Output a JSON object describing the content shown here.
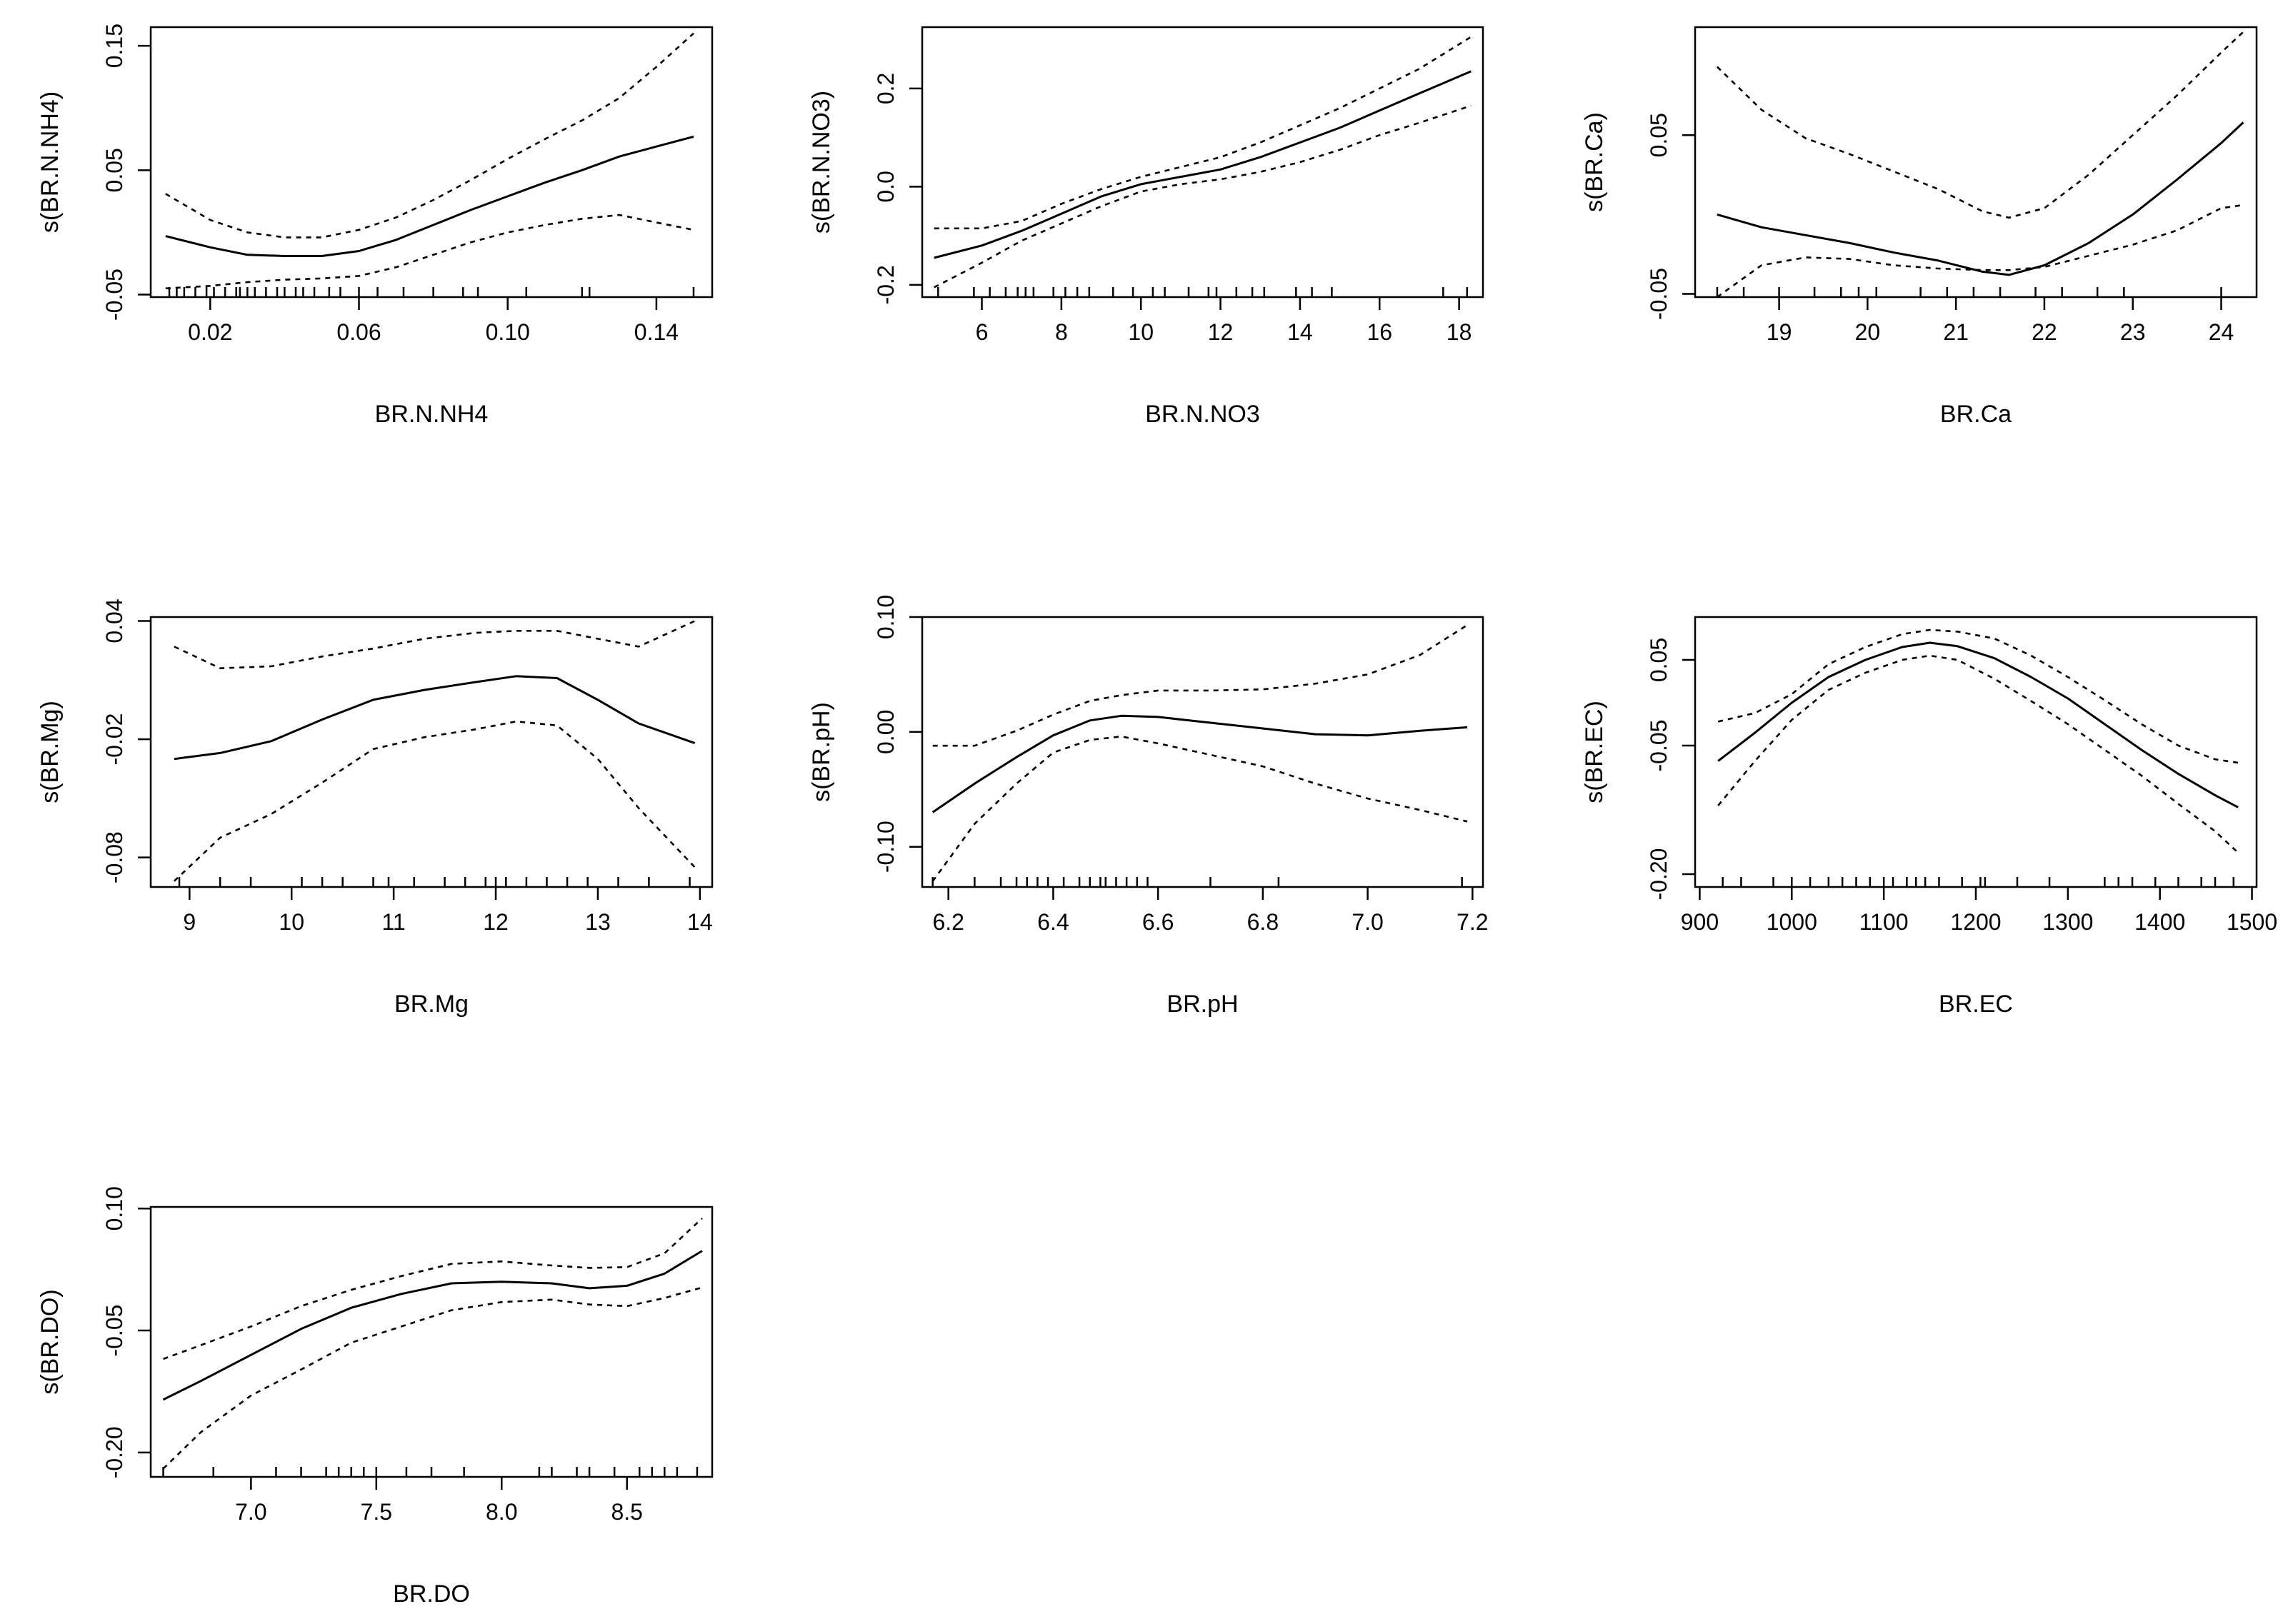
{
  "chart_data": [
    {
      "type": "line",
      "xlabel": "BR.N.NH4",
      "ylabel": "s(BR.N.NH4)",
      "xlim": [
        0.004,
        0.155
      ],
      "ylim": [
        -0.052,
        0.165
      ],
      "xticks": [
        0.02,
        0.06,
        0.1,
        0.14
      ],
      "xtick_labels": [
        "0.02",
        "0.06",
        "0.10",
        "0.14"
      ],
      "yticks": [
        -0.05,
        0.05,
        0.15
      ],
      "ytick_labels": [
        "-0.05",
        "0.05",
        "0.15"
      ],
      "series": [
        {
          "style": "solid",
          "x": [
            0.008,
            0.02,
            0.03,
            0.04,
            0.05,
            0.06,
            0.07,
            0.08,
            0.09,
            0.1,
            0.11,
            0.12,
            0.13,
            0.14,
            0.15
          ],
          "y": [
            -0.003,
            -0.012,
            -0.018,
            -0.019,
            -0.019,
            -0.015,
            -0.006,
            0.006,
            0.018,
            0.029,
            0.04,
            0.05,
            0.061,
            0.069,
            0.077
          ]
        },
        {
          "style": "dotted",
          "x": [
            0.008,
            0.02,
            0.03,
            0.04,
            0.05,
            0.06,
            0.07,
            0.08,
            0.09,
            0.1,
            0.11,
            0.12,
            0.13,
            0.14,
            0.15
          ],
          "y": [
            0.031,
            0.01,
            0.0,
            -0.004,
            -0.004,
            0.002,
            0.012,
            0.026,
            0.042,
            0.059,
            0.075,
            0.09,
            0.108,
            0.133,
            0.16
          ]
        },
        {
          "style": "dotted",
          "x": [
            0.008,
            0.02,
            0.03,
            0.04,
            0.05,
            0.06,
            0.07,
            0.08,
            0.09,
            0.1,
            0.11,
            0.12,
            0.13,
            0.14,
            0.15
          ],
          "y": [
            -0.045,
            -0.043,
            -0.04,
            -0.038,
            -0.037,
            -0.035,
            -0.028,
            -0.018,
            -0.008,
            0.0,
            0.006,
            0.011,
            0.014,
            0.008,
            0.002
          ]
        }
      ],
      "rug": [
        0.009,
        0.011,
        0.013,
        0.016,
        0.019,
        0.021,
        0.024,
        0.027,
        0.028,
        0.03,
        0.032,
        0.035,
        0.038,
        0.04,
        0.043,
        0.045,
        0.048,
        0.052,
        0.055,
        0.06,
        0.065,
        0.072,
        0.08,
        0.088,
        0.092,
        0.105,
        0.12,
        0.122,
        0.15
      ]
    },
    {
      "type": "line",
      "xlabel": "BR.N.NO3",
      "ylabel": "s(BR.N.NO3)",
      "xlim": [
        4.5,
        18.6
      ],
      "ylim": [
        -0.225,
        0.325
      ],
      "xticks": [
        6,
        8,
        10,
        12,
        14,
        16,
        18
      ],
      "xtick_labels": [
        "6",
        "8",
        "10",
        "12",
        "14",
        "16",
        "18"
      ],
      "yticks": [
        -0.2,
        0.0,
        0.2
      ],
      "ytick_labels": [
        "-0.2",
        "0.0",
        "0.2"
      ],
      "series": [
        {
          "style": "solid",
          "x": [
            4.8,
            6,
            7,
            8,
            9,
            10,
            11,
            12,
            13,
            14,
            15,
            16,
            17,
            18.3
          ],
          "y": [
            -0.145,
            -0.12,
            -0.09,
            -0.055,
            -0.02,
            0.005,
            0.02,
            0.035,
            0.06,
            0.09,
            0.12,
            0.155,
            0.19,
            0.235
          ]
        },
        {
          "style": "dotted",
          "x": [
            4.8,
            6,
            7,
            8,
            9,
            10,
            11,
            12,
            13,
            14,
            15,
            16,
            17,
            18.3
          ],
          "y": [
            -0.085,
            -0.085,
            -0.07,
            -0.035,
            -0.005,
            0.02,
            0.04,
            0.06,
            0.09,
            0.125,
            0.16,
            0.2,
            0.24,
            0.305
          ]
        },
        {
          "style": "dotted",
          "x": [
            4.8,
            6,
            7,
            8,
            9,
            10,
            11,
            12,
            13,
            14,
            15,
            16,
            17,
            18.3
          ],
          "y": [
            -0.205,
            -0.155,
            -0.11,
            -0.075,
            -0.04,
            -0.01,
            0.005,
            0.015,
            0.03,
            0.05,
            0.075,
            0.105,
            0.13,
            0.165
          ]
        }
      ],
      "rug": [
        4.9,
        5.8,
        6.2,
        6.6,
        6.9,
        7.1,
        7.3,
        7.8,
        8.1,
        8.4,
        8.7,
        9.3,
        9.8,
        10.3,
        10.6,
        11.2,
        11.7,
        11.9,
        12.4,
        12.8,
        13.1,
        13.9,
        14.3,
        14.8,
        17.6,
        18.2
      ]
    },
    {
      "type": "line",
      "xlabel": "BR.Ca",
      "ylabel": "s(BR.Ca)",
      "xlim": [
        18.05,
        24.4
      ],
      "ylim": [
        -0.052,
        0.118
      ],
      "xticks": [
        19,
        20,
        21,
        22,
        23,
        24
      ],
      "xtick_labels": [
        "19",
        "20",
        "21",
        "22",
        "23",
        "24"
      ],
      "yticks": [
        -0.05,
        0.05
      ],
      "ytick_labels": [
        "-0.05",
        "0.05"
      ],
      "series": [
        {
          "style": "solid",
          "x": [
            18.3,
            18.8,
            19.3,
            19.8,
            20.3,
            20.8,
            21.3,
            21.6,
            22.0,
            22.5,
            23.0,
            23.5,
            24.0,
            24.25
          ],
          "y": [
            0.0,
            -0.008,
            -0.013,
            -0.018,
            -0.024,
            -0.029,
            -0.036,
            -0.038,
            -0.032,
            -0.018,
            0.0,
            0.022,
            0.045,
            0.058
          ]
        },
        {
          "style": "dotted",
          "x": [
            18.3,
            18.8,
            19.3,
            19.8,
            20.3,
            20.8,
            21.3,
            21.6,
            22.0,
            22.5,
            23.0,
            23.5,
            24.0,
            24.25
          ],
          "y": [
            0.093,
            0.066,
            0.048,
            0.038,
            0.027,
            0.016,
            0.002,
            -0.002,
            0.004,
            0.025,
            0.05,
            0.075,
            0.102,
            0.115
          ]
        },
        {
          "style": "dotted",
          "x": [
            18.3,
            18.8,
            19.3,
            19.8,
            20.3,
            20.8,
            21.3,
            21.6,
            22.0,
            22.5,
            23.0,
            23.5,
            24.0,
            24.25
          ],
          "y": [
            -0.052,
            -0.032,
            -0.027,
            -0.028,
            -0.032,
            -0.034,
            -0.035,
            -0.035,
            -0.033,
            -0.026,
            -0.019,
            -0.01,
            0.004,
            0.006
          ]
        }
      ],
      "rug": [
        18.3,
        18.6,
        19.0,
        19.4,
        19.7,
        19.9,
        20.1,
        20.6,
        20.9,
        21.2,
        21.5,
        21.9,
        22.2,
        22.6,
        22.9,
        24.0
      ]
    },
    {
      "type": "line",
      "xlabel": "BR.Mg",
      "ylabel": "s(BR.Mg)",
      "xlim": [
        8.62,
        14.12
      ],
      "ylim": [
        -0.095,
        0.042
      ],
      "xticks": [
        9,
        10,
        11,
        12,
        13,
        14
      ],
      "xtick_labels": [
        "9",
        "10",
        "11",
        "12",
        "13",
        "14"
      ],
      "yticks": [
        -0.08,
        -0.02,
        0.04
      ],
      "ytick_labels": [
        "-0.08",
        "-0.02",
        "0.04"
      ],
      "series": [
        {
          "style": "solid",
          "x": [
            8.85,
            9.3,
            9.8,
            10.3,
            10.8,
            11.3,
            11.8,
            12.2,
            12.6,
            13.0,
            13.4,
            13.95
          ],
          "y": [
            -0.03,
            -0.027,
            -0.021,
            -0.01,
            0.0,
            0.005,
            0.009,
            0.012,
            0.011,
            0.0,
            -0.012,
            -0.022
          ]
        },
        {
          "style": "dotted",
          "x": [
            8.85,
            9.3,
            9.8,
            10.3,
            10.8,
            11.3,
            11.8,
            12.2,
            12.6,
            13.0,
            13.4,
            13.95
          ],
          "y": [
            0.027,
            0.016,
            0.017,
            0.022,
            0.026,
            0.031,
            0.034,
            0.035,
            0.035,
            0.031,
            0.027,
            0.04
          ]
        },
        {
          "style": "dotted",
          "x": [
            8.85,
            9.3,
            9.8,
            10.3,
            10.8,
            11.3,
            11.8,
            12.2,
            12.6,
            13.0,
            13.4,
            13.95
          ],
          "y": [
            -0.092,
            -0.07,
            -0.058,
            -0.042,
            -0.025,
            -0.019,
            -0.015,
            -0.011,
            -0.013,
            -0.03,
            -0.055,
            -0.085
          ]
        }
      ],
      "rug": [
        8.9,
        9.3,
        9.6,
        10.1,
        10.3,
        10.5,
        10.8,
        10.95,
        11.2,
        11.5,
        11.7,
        11.9,
        12.0,
        12.1,
        12.3,
        12.5,
        12.7,
        12.9,
        13.2,
        13.5,
        13.9
      ]
    },
    {
      "type": "line",
      "xlabel": "BR.pH",
      "ylabel": "s(BR.pH)",
      "xlim": [
        6.15,
        7.22
      ],
      "ylim": [
        -0.135,
        0.1
      ],
      "xticks": [
        6.2,
        6.4,
        6.6,
        6.8,
        7.0,
        7.2
      ],
      "xtick_labels": [
        "6.2",
        "6.4",
        "6.6",
        "6.8",
        "7.0",
        "7.2"
      ],
      "yticks": [
        -0.1,
        0.0,
        0.1
      ],
      "ytick_labels": [
        "-0.10",
        "0.00",
        "0.10"
      ],
      "series": [
        {
          "style": "solid",
          "x": [
            6.17,
            6.25,
            6.33,
            6.4,
            6.47,
            6.53,
            6.6,
            6.7,
            6.8,
            6.9,
            7.0,
            7.1,
            7.19
          ],
          "y": [
            -0.07,
            -0.045,
            -0.022,
            -0.003,
            0.01,
            0.014,
            0.013,
            0.008,
            0.003,
            -0.002,
            -0.003,
            0.001,
            0.004
          ]
        },
        {
          "style": "dotted",
          "x": [
            6.17,
            6.25,
            6.33,
            6.4,
            6.47,
            6.53,
            6.6,
            6.7,
            6.8,
            6.9,
            7.0,
            7.1,
            7.19
          ],
          "y": [
            -0.012,
            -0.012,
            0.001,
            0.015,
            0.027,
            0.032,
            0.036,
            0.036,
            0.037,
            0.042,
            0.05,
            0.067,
            0.093
          ]
        },
        {
          "style": "dotted",
          "x": [
            6.17,
            6.25,
            6.33,
            6.4,
            6.47,
            6.53,
            6.6,
            6.7,
            6.8,
            6.9,
            7.0,
            7.1,
            7.19
          ],
          "y": [
            -0.13,
            -0.08,
            -0.045,
            -0.018,
            -0.007,
            -0.004,
            -0.01,
            -0.02,
            -0.03,
            -0.045,
            -0.058,
            -0.068,
            -0.078
          ]
        }
      ],
      "rug": [
        6.17,
        6.25,
        6.3,
        6.33,
        6.35,
        6.37,
        6.39,
        6.42,
        6.45,
        6.47,
        6.49,
        6.5,
        6.52,
        6.54,
        6.56,
        6.58,
        6.7,
        6.83,
        7.18
      ]
    },
    {
      "type": "line",
      "xlabel": "BR.EC",
      "ylabel": "s(BR.EC)",
      "xlim": [
        895,
        1505
      ],
      "ylim": [
        -0.215,
        0.1
      ],
      "xticks": [
        900,
        1000,
        1100,
        1200,
        1300,
        1400,
        1500
      ],
      "xtick_labels": [
        "900",
        "1000",
        "1100",
        "1200",
        "1300",
        "1400",
        "1500"
      ],
      "yticks": [
        -0.2,
        -0.05,
        0.05
      ],
      "ytick_labels": [
        "-0.20",
        "-0.05",
        "0.05"
      ],
      "series": [
        {
          "style": "solid",
          "x": [
            920,
            960,
            1000,
            1040,
            1080,
            1120,
            1150,
            1180,
            1220,
            1260,
            1300,
            1340,
            1380,
            1420,
            1460,
            1485
          ],
          "y": [
            -0.068,
            -0.035,
            0.0,
            0.03,
            0.05,
            0.065,
            0.07,
            0.066,
            0.052,
            0.03,
            0.005,
            -0.025,
            -0.055,
            -0.083,
            -0.108,
            -0.122
          ]
        },
        {
          "style": "dotted",
          "x": [
            920,
            960,
            1000,
            1040,
            1080,
            1120,
            1150,
            1180,
            1220,
            1260,
            1300,
            1340,
            1380,
            1420,
            1460,
            1485
          ],
          "y": [
            -0.022,
            -0.012,
            0.01,
            0.045,
            0.065,
            0.08,
            0.085,
            0.083,
            0.075,
            0.055,
            0.03,
            0.003,
            -0.025,
            -0.05,
            -0.066,
            -0.07
          ]
        },
        {
          "style": "dotted",
          "x": [
            920,
            960,
            1000,
            1040,
            1080,
            1120,
            1150,
            1180,
            1220,
            1260,
            1300,
            1340,
            1380,
            1420,
            1460,
            1485
          ],
          "y": [
            -0.12,
            -0.068,
            -0.02,
            0.015,
            0.035,
            0.05,
            0.055,
            0.05,
            0.028,
            0.002,
            -0.025,
            -0.055,
            -0.085,
            -0.118,
            -0.15,
            -0.175
          ]
        }
      ],
      "rug": [
        925,
        945,
        980,
        1000,
        1020,
        1040,
        1055,
        1070,
        1085,
        1100,
        1110,
        1125,
        1135,
        1145,
        1160,
        1185,
        1205,
        1210,
        1245,
        1280,
        1340,
        1355,
        1370,
        1395,
        1420,
        1445,
        1460,
        1480
      ]
    },
    {
      "type": "line",
      "xlabel": "BR.DO",
      "ylabel": "s(BR.DO)",
      "xlim": [
        6.6,
        8.84
      ],
      "ylim": [
        -0.23,
        0.102
      ],
      "xticks": [
        7.0,
        7.5,
        8.0,
        8.5
      ],
      "xtick_labels": [
        "7.0",
        "7.5",
        "8.0",
        "8.5"
      ],
      "yticks": [
        -0.2,
        -0.05,
        0.1
      ],
      "ytick_labels": [
        "-0.20",
        "-0.05",
        "0.10"
      ],
      "series": [
        {
          "style": "solid",
          "x": [
            6.65,
            6.8,
            7.0,
            7.2,
            7.4,
            7.6,
            7.8,
            8.0,
            8.2,
            8.35,
            8.5,
            8.65,
            8.8
          ],
          "y": [
            -0.135,
            -0.112,
            -0.08,
            -0.048,
            -0.022,
            -0.005,
            0.008,
            0.01,
            0.008,
            0.002,
            0.005,
            0.02,
            0.048
          ]
        },
        {
          "style": "dotted",
          "x": [
            6.65,
            6.8,
            7.0,
            7.2,
            7.4,
            7.6,
            7.8,
            8.0,
            8.2,
            8.35,
            8.5,
            8.65,
            8.8
          ],
          "y": [
            -0.085,
            -0.068,
            -0.045,
            -0.02,
            0.0,
            0.017,
            0.032,
            0.035,
            0.03,
            0.027,
            0.028,
            0.045,
            0.088
          ]
        },
        {
          "style": "dotted",
          "x": [
            6.65,
            6.8,
            7.0,
            7.2,
            7.4,
            7.6,
            7.8,
            8.0,
            8.2,
            8.35,
            8.5,
            8.65,
            8.8
          ],
          "y": [
            -0.22,
            -0.175,
            -0.13,
            -0.098,
            -0.065,
            -0.045,
            -0.025,
            -0.015,
            -0.012,
            -0.018,
            -0.02,
            -0.01,
            0.003
          ]
        }
      ],
      "rug": [
        6.65,
        6.85,
        7.1,
        7.2,
        7.3,
        7.35,
        7.4,
        7.45,
        7.5,
        7.62,
        7.72,
        7.85,
        8.15,
        8.2,
        8.3,
        8.35,
        8.45,
        8.55,
        8.6,
        8.65,
        8.7,
        8.78
      ]
    }
  ]
}
